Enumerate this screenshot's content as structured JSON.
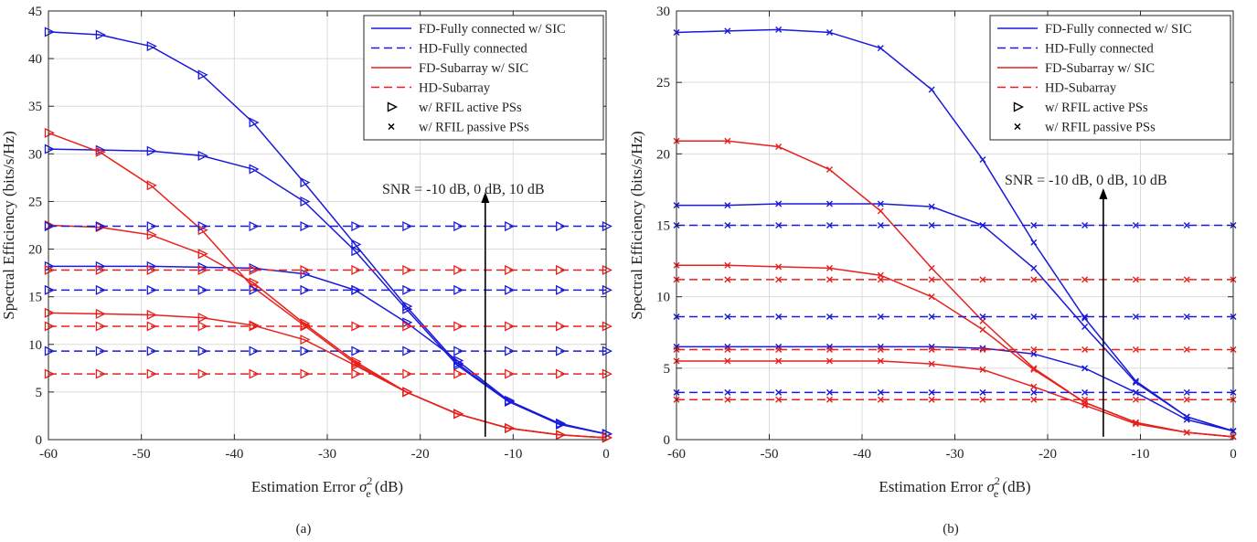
{
  "figure": {
    "panel_labels": [
      "(a)",
      "(b)"
    ]
  },
  "legend_entries": [
    {
      "label": "FD-Fully connected w/ SIC",
      "color": "#1a1adb",
      "dash": "solid",
      "marker": "none"
    },
    {
      "label": "HD-Fully connected",
      "color": "#1a1adb",
      "dash": "dashed",
      "marker": "none"
    },
    {
      "label": "FD-Subarray w/ SIC",
      "color": "#e8201c",
      "dash": "solid",
      "marker": "none"
    },
    {
      "label": "HD-Subarray",
      "color": "#e8201c",
      "dash": "dashed",
      "marker": "none"
    },
    {
      "label": "w/ RFIL active PSs",
      "color": "#000000",
      "dash": "none",
      "marker": "triangle-right"
    },
    {
      "label": "w/ RFIL passive PSs",
      "color": "#000000",
      "dash": "none",
      "marker": "x"
    }
  ],
  "colors": {
    "blue": "#1a1adb",
    "red": "#e8201c",
    "grid": "#dcdcdc",
    "axis": "#262626"
  },
  "chart_data": [
    {
      "type": "line",
      "panel": "(a)",
      "xlabel_main": "Estimation Error ",
      "xlabel_sym": "σ",
      "xlabel_sup": "2",
      "xlabel_sub": "e",
      "xlabel_unit": " (dB)",
      "ylabel": "Spectral Efficiency (bits/s/Hz)",
      "xlim": [
        -60,
        0
      ],
      "ylim": [
        0,
        45
      ],
      "xticks": [
        -60,
        -50,
        -40,
        -30,
        -20,
        -10,
        0
      ],
      "yticks": [
        0,
        5,
        10,
        15,
        20,
        25,
        30,
        35,
        40,
        45
      ],
      "grid": true,
      "legend_position": "top-right",
      "annotation": {
        "text": "SNR = -10 dB, 0 dB, 10 dB",
        "arrow_x": -13,
        "arrow_y_from": 0.3,
        "arrow_y_to": 26
      },
      "x": [
        -60,
        -54.5,
        -49,
        -43.5,
        -38,
        -32.5,
        -27,
        -21.5,
        -16,
        -10.5,
        -5,
        0
      ],
      "series": [
        {
          "color": "#1a1adb",
          "dash": "solid",
          "marker": "triangle-right",
          "values": [
            42.8,
            42.5,
            41.3,
            38.3,
            33.3,
            27.0,
            20.5,
            14.0,
            8.0,
            4.0,
            1.6,
            0.6
          ]
        },
        {
          "color": "#1a1adb",
          "dash": "solid",
          "marker": "triangle-right",
          "values": [
            30.5,
            30.4,
            30.3,
            29.8,
            28.4,
            25.0,
            19.8,
            13.7,
            7.8,
            4.0,
            1.6,
            0.6
          ]
        },
        {
          "color": "#1a1adb",
          "dash": "solid",
          "marker": "triangle-right",
          "values": [
            18.2,
            18.2,
            18.2,
            18.1,
            18.0,
            17.4,
            15.7,
            12.3,
            8.3,
            4.1,
            1.7,
            0.6
          ]
        },
        {
          "color": "#e8201c",
          "dash": "solid",
          "marker": "triangle-right",
          "values": [
            32.2,
            30.2,
            26.7,
            22.0,
            16.0,
            12.0,
            8.0,
            5.0,
            2.7,
            1.2,
            0.5,
            0.2
          ]
        },
        {
          "color": "#e8201c",
          "dash": "solid",
          "marker": "triangle-right",
          "values": [
            22.5,
            22.3,
            21.5,
            19.5,
            16.5,
            12.2,
            8.2,
            5.0,
            2.7,
            1.2,
            0.5,
            0.2
          ]
        },
        {
          "color": "#e8201c",
          "dash": "solid",
          "marker": "triangle-right",
          "values": [
            13.3,
            13.2,
            13.1,
            12.8,
            12.0,
            10.5,
            7.8,
            5.0,
            2.7,
            1.2,
            0.5,
            0.2
          ]
        },
        {
          "color": "#1a1adb",
          "dash": "dashed",
          "marker": "triangle-right",
          "values": [
            22.4,
            22.4,
            22.4,
            22.4,
            22.4,
            22.4,
            22.4,
            22.4,
            22.4,
            22.4,
            22.4,
            22.4
          ]
        },
        {
          "color": "#1a1adb",
          "dash": "dashed",
          "marker": "triangle-right",
          "values": [
            15.7,
            15.7,
            15.7,
            15.7,
            15.7,
            15.7,
            15.7,
            15.7,
            15.7,
            15.7,
            15.7,
            15.7
          ]
        },
        {
          "color": "#1a1adb",
          "dash": "dashed",
          "marker": "triangle-right",
          "values": [
            9.3,
            9.3,
            9.3,
            9.3,
            9.3,
            9.3,
            9.3,
            9.3,
            9.3,
            9.3,
            9.3,
            9.3
          ]
        },
        {
          "color": "#e8201c",
          "dash": "dashed",
          "marker": "triangle-right",
          "values": [
            17.8,
            17.8,
            17.8,
            17.8,
            17.8,
            17.8,
            17.8,
            17.8,
            17.8,
            17.8,
            17.8,
            17.8
          ]
        },
        {
          "color": "#e8201c",
          "dash": "dashed",
          "marker": "triangle-right",
          "values": [
            11.9,
            11.9,
            11.9,
            11.9,
            11.9,
            11.9,
            11.9,
            11.9,
            11.9,
            11.9,
            11.9,
            11.9
          ]
        },
        {
          "color": "#e8201c",
          "dash": "dashed",
          "marker": "triangle-right",
          "values": [
            6.9,
            6.9,
            6.9,
            6.9,
            6.9,
            6.9,
            6.9,
            6.9,
            6.9,
            6.9,
            6.9,
            6.9
          ]
        }
      ]
    },
    {
      "type": "line",
      "panel": "(b)",
      "xlabel_main": "Estimation Error ",
      "xlabel_sym": "σ",
      "xlabel_sup": "2",
      "xlabel_sub": "e",
      "xlabel_unit": " (dB)",
      "ylabel": "Spectral Efficiency (bits/s/Hz)",
      "xlim": [
        -60,
        0
      ],
      "ylim": [
        0,
        30
      ],
      "xticks": [
        -60,
        -50,
        -40,
        -30,
        -20,
        -10,
        0
      ],
      "yticks": [
        0,
        5,
        10,
        15,
        20,
        25,
        30
      ],
      "grid": true,
      "legend_position": "top-right",
      "annotation": {
        "text": "SNR = -10 dB, 0 dB, 10 dB",
        "arrow_x": -14,
        "arrow_y_from": 0.2,
        "arrow_y_to": 17.6
      },
      "x": [
        -60,
        -54.5,
        -49,
        -43.5,
        -38,
        -32.5,
        -27,
        -21.5,
        -16,
        -10.5,
        -5,
        0
      ],
      "series": [
        {
          "color": "#1a1adb",
          "dash": "solid",
          "marker": "x",
          "values": [
            28.5,
            28.6,
            28.7,
            28.5,
            27.4,
            24.5,
            19.6,
            13.8,
            8.5,
            4.1,
            1.6,
            0.6
          ]
        },
        {
          "color": "#1a1adb",
          "dash": "solid",
          "marker": "x",
          "values": [
            16.4,
            16.4,
            16.5,
            16.5,
            16.5,
            16.3,
            15.0,
            12.0,
            7.9,
            4.0,
            1.6,
            0.6
          ]
        },
        {
          "color": "#1a1adb",
          "dash": "solid",
          "marker": "x",
          "values": [
            6.5,
            6.5,
            6.5,
            6.5,
            6.5,
            6.5,
            6.4,
            6.0,
            5.0,
            3.3,
            1.4,
            0.6
          ]
        },
        {
          "color": "#e8201c",
          "dash": "solid",
          "marker": "x",
          "values": [
            20.9,
            20.9,
            20.5,
            18.9,
            16.0,
            12.0,
            8.3,
            5.0,
            2.6,
            1.2,
            0.5,
            0.2
          ]
        },
        {
          "color": "#e8201c",
          "dash": "solid",
          "marker": "x",
          "values": [
            12.2,
            12.2,
            12.1,
            12.0,
            11.5,
            10.0,
            7.7,
            4.9,
            2.6,
            1.2,
            0.5,
            0.2
          ]
        },
        {
          "color": "#e8201c",
          "dash": "solid",
          "marker": "x",
          "values": [
            5.5,
            5.5,
            5.5,
            5.5,
            5.5,
            5.3,
            4.9,
            3.7,
            2.4,
            1.1,
            0.5,
            0.2
          ]
        },
        {
          "color": "#1a1adb",
          "dash": "dashed",
          "marker": "x",
          "values": [
            15.0,
            15.0,
            15.0,
            15.0,
            15.0,
            15.0,
            15.0,
            15.0,
            15.0,
            15.0,
            15.0,
            15.0
          ]
        },
        {
          "color": "#1a1adb",
          "dash": "dashed",
          "marker": "x",
          "values": [
            8.6,
            8.6,
            8.6,
            8.6,
            8.6,
            8.6,
            8.6,
            8.6,
            8.6,
            8.6,
            8.6,
            8.6
          ]
        },
        {
          "color": "#1a1adb",
          "dash": "dashed",
          "marker": "x",
          "values": [
            3.3,
            3.3,
            3.3,
            3.3,
            3.3,
            3.3,
            3.3,
            3.3,
            3.3,
            3.3,
            3.3,
            3.3
          ]
        },
        {
          "color": "#e8201c",
          "dash": "dashed",
          "marker": "x",
          "values": [
            11.2,
            11.2,
            11.2,
            11.2,
            11.2,
            11.2,
            11.2,
            11.2,
            11.2,
            11.2,
            11.2,
            11.2
          ]
        },
        {
          "color": "#e8201c",
          "dash": "dashed",
          "marker": "x",
          "values": [
            6.3,
            6.3,
            6.3,
            6.3,
            6.3,
            6.3,
            6.3,
            6.3,
            6.3,
            6.3,
            6.3,
            6.3
          ]
        },
        {
          "color": "#e8201c",
          "dash": "dashed",
          "marker": "x",
          "values": [
            2.8,
            2.8,
            2.8,
            2.8,
            2.8,
            2.8,
            2.8,
            2.8,
            2.8,
            2.8,
            2.8,
            2.8
          ]
        }
      ]
    }
  ]
}
